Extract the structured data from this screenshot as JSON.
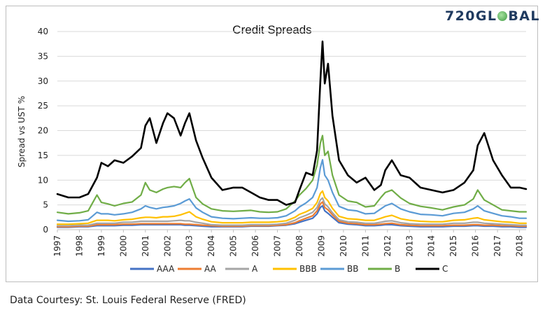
{
  "logo": {
    "prefix": "720GL",
    "suffix": "BAL"
  },
  "footer": {
    "credit": "Data Courtesy: St. Louis Federal Reserve (FRED)"
  },
  "chart_data": {
    "type": "line",
    "title": "Credit Spreads",
    "xlabel": "",
    "ylabel": "Spread vs UST %",
    "ylim": [
      0,
      40
    ],
    "yticks": [
      0,
      5,
      10,
      15,
      20,
      25,
      30,
      35,
      40
    ],
    "xticks": [
      "1997",
      "1998",
      "1999",
      "2000",
      "2001",
      "2002",
      "2003",
      "2004",
      "2005",
      "2006",
      "2007",
      "2008",
      "2009",
      "2010",
      "2011",
      "2012",
      "2013",
      "2014",
      "2015",
      "2016",
      "2017",
      "2018"
    ],
    "xlim": [
      1997.0,
      2018.3
    ],
    "grid": "horizontal",
    "legend": "bottom",
    "x": [
      1997.0,
      1997.5,
      1998.0,
      1998.4,
      1998.8,
      1999.0,
      1999.3,
      1999.6,
      2000.0,
      2000.4,
      2000.8,
      2001.0,
      2001.2,
      2001.5,
      2001.8,
      2002.0,
      2002.3,
      2002.6,
      2002.8,
      2003.0,
      2003.3,
      2003.6,
      2004.0,
      2004.5,
      2005.0,
      2005.4,
      2005.8,
      2006.2,
      2006.6,
      2007.0,
      2007.4,
      2007.8,
      2008.0,
      2008.3,
      2008.6,
      2008.8,
      2008.95,
      2009.05,
      2009.15,
      2009.3,
      2009.5,
      2009.8,
      2010.2,
      2010.6,
      2011.0,
      2011.4,
      2011.7,
      2011.9,
      2012.2,
      2012.6,
      2013.0,
      2013.5,
      2014.0,
      2014.5,
      2015.0,
      2015.5,
      2015.9,
      2016.1,
      2016.4,
      2016.8,
      2017.2,
      2017.6,
      2018.0,
      2018.3
    ],
    "series": [
      {
        "name": "AAA",
        "color": "#4472c4",
        "values": [
          0.5,
          0.5,
          0.6,
          0.6,
          0.8,
          0.8,
          0.8,
          0.8,
          0.9,
          0.9,
          1.0,
          1.0,
          1.0,
          1.0,
          1.0,
          1.0,
          1.0,
          1.0,
          0.9,
          0.9,
          0.8,
          0.7,
          0.6,
          0.6,
          0.6,
          0.6,
          0.7,
          0.7,
          0.7,
          0.8,
          0.9,
          1.2,
          1.5,
          1.9,
          2.3,
          3.2,
          4.5,
          4.8,
          3.8,
          3.3,
          2.5,
          1.4,
          1.1,
          1.0,
          0.8,
          0.8,
          0.9,
          1.0,
          1.0,
          0.8,
          0.7,
          0.6,
          0.6,
          0.6,
          0.7,
          0.7,
          0.8,
          0.8,
          0.7,
          0.7,
          0.6,
          0.6,
          0.5,
          0.5
        ]
      },
      {
        "name": "AA",
        "color": "#ed7d31",
        "values": [
          0.6,
          0.6,
          0.7,
          0.7,
          1.0,
          1.0,
          1.0,
          1.0,
          1.1,
          1.1,
          1.2,
          1.2,
          1.2,
          1.2,
          1.2,
          1.2,
          1.2,
          1.2,
          1.1,
          1.1,
          1.0,
          0.9,
          0.8,
          0.7,
          0.7,
          0.7,
          0.8,
          0.8,
          0.8,
          0.9,
          1.0,
          1.4,
          1.8,
          2.3,
          2.8,
          3.8,
          5.2,
          5.6,
          4.5,
          4.0,
          3.0,
          1.7,
          1.3,
          1.2,
          1.0,
          1.0,
          1.1,
          1.2,
          1.3,
          1.0,
          0.9,
          0.8,
          0.8,
          0.8,
          0.9,
          0.9,
          1.0,
          1.0,
          0.9,
          0.9,
          0.8,
          0.8,
          0.7,
          0.7
        ]
      },
      {
        "name": "A",
        "color": "#a5a5a5",
        "values": [
          0.8,
          0.8,
          0.9,
          0.9,
          1.3,
          1.3,
          1.3,
          1.3,
          1.5,
          1.5,
          1.7,
          1.7,
          1.7,
          1.7,
          1.7,
          1.7,
          1.8,
          1.9,
          1.8,
          1.8,
          1.5,
          1.3,
          1.0,
          0.9,
          0.9,
          0.9,
          1.0,
          1.0,
          1.0,
          1.1,
          1.3,
          1.9,
          2.4,
          2.9,
          3.5,
          4.5,
          6.0,
          6.4,
          5.2,
          4.6,
          3.4,
          2.0,
          1.6,
          1.5,
          1.3,
          1.3,
          1.5,
          1.7,
          1.8,
          1.4,
          1.2,
          1.1,
          1.1,
          1.1,
          1.3,
          1.3,
          1.5,
          1.5,
          1.3,
          1.2,
          1.1,
          1.0,
          0.9,
          0.9
        ]
      },
      {
        "name": "BBB",
        "color": "#ffc000",
        "values": [
          1.1,
          1.1,
          1.2,
          1.3,
          1.9,
          1.9,
          1.9,
          1.8,
          2.0,
          2.1,
          2.4,
          2.5,
          2.5,
          2.4,
          2.6,
          2.6,
          2.7,
          3.0,
          3.3,
          3.6,
          2.6,
          2.1,
          1.6,
          1.4,
          1.4,
          1.4,
          1.5,
          1.5,
          1.5,
          1.6,
          1.8,
          2.5,
          3.1,
          3.6,
          4.3,
          5.5,
          7.3,
          7.8,
          6.5,
          5.8,
          4.3,
          2.7,
          2.2,
          2.1,
          1.9,
          1.9,
          2.3,
          2.6,
          2.9,
          2.2,
          1.9,
          1.7,
          1.6,
          1.6,
          1.9,
          2.0,
          2.3,
          2.4,
          2.0,
          1.8,
          1.6,
          1.5,
          1.3,
          1.3
        ]
      },
      {
        "name": "BB",
        "color": "#5b9bd5",
        "values": [
          1.9,
          1.7,
          1.8,
          2.0,
          3.5,
          3.2,
          3.2,
          3.0,
          3.2,
          3.5,
          4.2,
          4.8,
          4.5,
          4.2,
          4.5,
          4.6,
          4.8,
          5.3,
          5.8,
          6.2,
          4.4,
          3.5,
          2.6,
          2.3,
          2.2,
          2.3,
          2.4,
          2.3,
          2.3,
          2.4,
          2.8,
          3.8,
          4.6,
          5.4,
          6.5,
          8.5,
          12.5,
          14.1,
          11.0,
          10.0,
          7.5,
          4.7,
          4.0,
          3.8,
          3.2,
          3.3,
          4.2,
          4.8,
          5.3,
          4.2,
          3.6,
          3.1,
          3.0,
          2.8,
          3.3,
          3.5,
          4.2,
          4.8,
          3.8,
          3.3,
          2.8,
          2.6,
          2.3,
          2.3
        ]
      },
      {
        "name": "B",
        "color": "#70ad47",
        "values": [
          3.5,
          3.2,
          3.4,
          3.8,
          7.0,
          5.5,
          5.2,
          4.8,
          5.3,
          5.6,
          7.0,
          9.5,
          8.0,
          7.5,
          8.2,
          8.5,
          8.7,
          8.5,
          9.5,
          10.3,
          6.5,
          5.2,
          4.2,
          3.8,
          3.7,
          3.8,
          3.9,
          3.6,
          3.5,
          3.6,
          4.2,
          5.8,
          7.0,
          8.3,
          10.0,
          13.0,
          17.5,
          19.0,
          15.0,
          15.8,
          11.0,
          7.0,
          5.8,
          5.5,
          4.6,
          4.8,
          6.5,
          7.5,
          8.0,
          6.4,
          5.3,
          4.7,
          4.4,
          4.0,
          4.6,
          5.0,
          6.2,
          8.0,
          6.0,
          5.0,
          4.0,
          3.8,
          3.6,
          3.6
        ]
      },
      {
        "name": "C",
        "color": "#000000",
        "values": [
          7.2,
          6.5,
          6.5,
          7.2,
          10.5,
          13.5,
          12.8,
          14.0,
          13.5,
          14.8,
          16.5,
          21.0,
          22.5,
          17.5,
          21.5,
          23.5,
          22.5,
          19.0,
          21.5,
          23.5,
          18.0,
          14.5,
          10.5,
          8.0,
          8.5,
          8.5,
          7.5,
          6.5,
          6.0,
          6.0,
          5.0,
          5.5,
          8.0,
          11.5,
          11.0,
          16.0,
          30.0,
          38.0,
          29.5,
          33.5,
          23.0,
          14.0,
          11.0,
          9.5,
          10.5,
          8.0,
          9.0,
          12.0,
          14.0,
          11.0,
          10.5,
          8.5,
          8.0,
          7.5,
          8.0,
          9.5,
          12.0,
          17.0,
          19.5,
          14.0,
          11.0,
          8.5,
          8.5,
          8.2
        ]
      }
    ]
  }
}
